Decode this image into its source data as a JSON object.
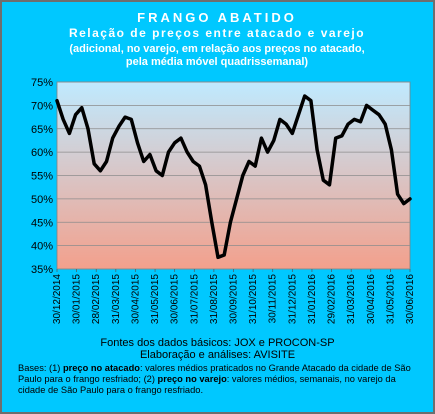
{
  "title": "FRANGO ABATIDO",
  "subtitle": "Relação de preços entre atacado e varejo",
  "note_line1": "(adicional, no varejo, em relação aos preços no atacado,",
  "note_line2": "pela média móvel quadrissemanal)",
  "sources": "Fontes dos dados básicos: JOX e PROCON-SP",
  "analysis": "Elaboração e análises: AVISITE",
  "bases": {
    "intro": "Bases: (1) ",
    "term1": "preço no atacado",
    "text1": ": valores médios praticados no Grande Atacado da cidade de São Paulo para o frango resfriado; (2) ",
    "term2": "preço no varejo",
    "text2": ": valores médios, semanais, no varejo da cidade de São Paulo para o frango resfriado."
  },
  "colors": {
    "background": "#00c8ff",
    "plot_gradient_top": "#bfeaff",
    "plot_gradient_bottom": "#f3a08c",
    "line": "#000000",
    "title": "#ffffff"
  },
  "chart_data": {
    "type": "line",
    "ylim": [
      35,
      75
    ],
    "yticks": [
      "35%",
      "40%",
      "45%",
      "50%",
      "55%",
      "60%",
      "65%",
      "70%",
      "75%"
    ],
    "ytick_values": [
      35,
      40,
      45,
      50,
      55,
      60,
      65,
      70,
      75
    ],
    "x_labels": [
      "30/12/2014",
      "30/01/2015",
      "28/02/2015",
      "31/03/2015",
      "30/04/2015",
      "31/05/2015",
      "30/06/2015",
      "31/07/2015",
      "31/08/2015",
      "30/09/2015",
      "31/10/2015",
      "30/11/2015",
      "31/12/2015",
      "31/01/2016",
      "29/02/2016",
      "31/03/2016",
      "30/04/2016",
      "31/05/2016",
      "30/06/2016"
    ],
    "grid": true,
    "series": [
      {
        "values": [
          71,
          67,
          64,
          68,
          69.5,
          65,
          57.5,
          56,
          58,
          63,
          65.5,
          67.5,
          67,
          62,
          58,
          59.5,
          56,
          55,
          60,
          62,
          63,
          60,
          58,
          57,
          53,
          45,
          37.5,
          38,
          45,
          50,
          55,
          58,
          57,
          63,
          60,
          62.5,
          67,
          66,
          64,
          68,
          72,
          71,
          60.5,
          54,
          53,
          63,
          63.5,
          66,
          67,
          66.5,
          70,
          69,
          68,
          66,
          60.5,
          51,
          49,
          50
        ]
      }
    ]
  }
}
